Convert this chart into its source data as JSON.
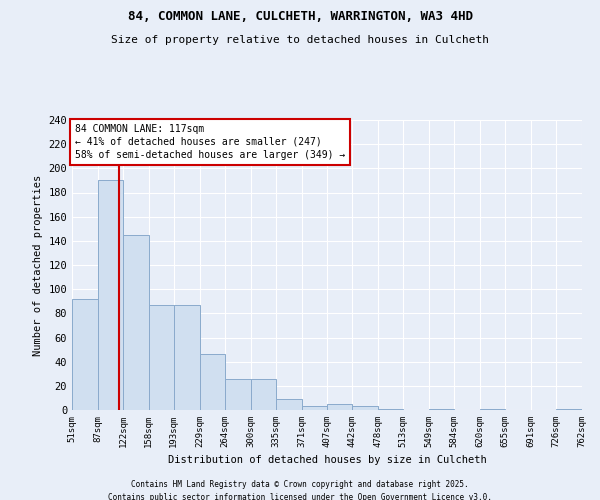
{
  "title_line1": "84, COMMON LANE, CULCHETH, WARRINGTON, WA3 4HD",
  "title_line2": "Size of property relative to detached houses in Culcheth",
  "xlabel": "Distribution of detached houses by size in Culcheth",
  "ylabel": "Number of detached properties",
  "bar_heights": [
    92,
    190,
    145,
    87,
    87,
    46,
    26,
    26,
    9,
    3,
    5,
    3,
    1,
    0,
    1,
    0,
    1,
    0,
    0,
    1
  ],
  "bin_edges": [
    51,
    87,
    122,
    158,
    193,
    229,
    264,
    300,
    335,
    371,
    407,
    442,
    478,
    513,
    549,
    584,
    620,
    655,
    691,
    726,
    762
  ],
  "tick_labels": [
    "51sqm",
    "87sqm",
    "122sqm",
    "158sqm",
    "193sqm",
    "229sqm",
    "264sqm",
    "300sqm",
    "335sqm",
    "371sqm",
    "407sqm",
    "442sqm",
    "478sqm",
    "513sqm",
    "549sqm",
    "584sqm",
    "620sqm",
    "655sqm",
    "691sqm",
    "726sqm",
    "762sqm"
  ],
  "bar_color": "#d0dff0",
  "bar_edge_color": "#8aaacc",
  "red_line_x": 117,
  "red_line_color": "#cc0000",
  "annotation_text": "84 COMMON LANE: 117sqm\n← 41% of detached houses are smaller (247)\n58% of semi-detached houses are larger (349) →",
  "annotation_box_color": "#ffffff",
  "annotation_box_edge": "#cc0000",
  "ylim": [
    0,
    240
  ],
  "yticks": [
    0,
    20,
    40,
    60,
    80,
    100,
    120,
    140,
    160,
    180,
    200,
    220,
    240
  ],
  "background_color": "#e8eef8",
  "grid_color": "#ffffff",
  "footer_line1": "Contains HM Land Registry data © Crown copyright and database right 2025.",
  "footer_line2": "Contains public sector information licensed under the Open Government Licence v3.0."
}
